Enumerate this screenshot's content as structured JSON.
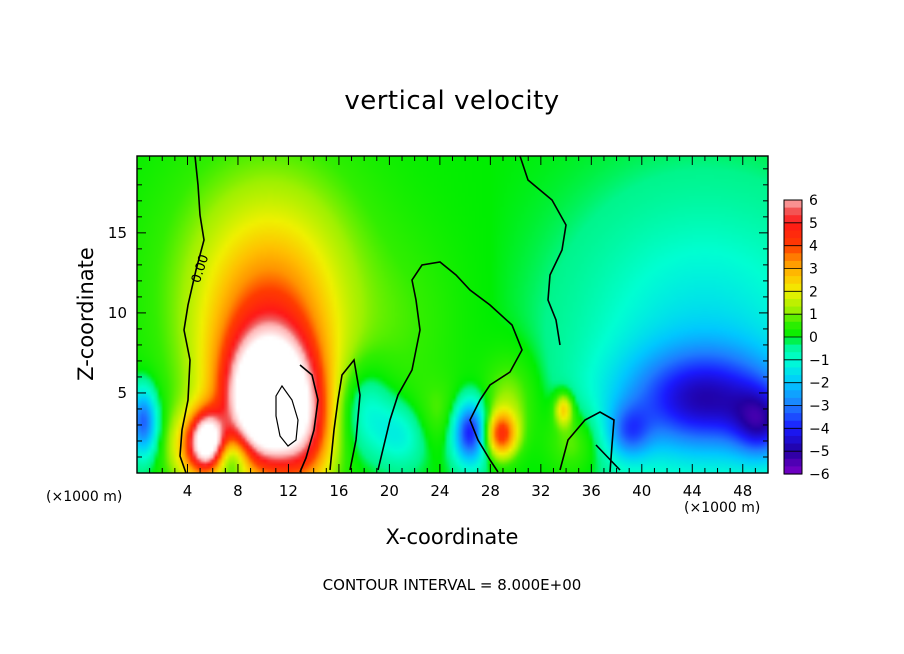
{
  "chart_data": {
    "type": "heatmap",
    "title": "vertical velocity",
    "xlabel": "X-coordinate",
    "ylabel": "Z-coordinate",
    "x_unit": "(×1000 m)",
    "y_unit": "(×1000 m)",
    "xlim": [
      0,
      50
    ],
    "ylim": [
      0,
      19.8
    ],
    "x_ticks": [
      4,
      8,
      12,
      16,
      20,
      24,
      28,
      32,
      36,
      40,
      44,
      48
    ],
    "y_ticks": [
      5,
      10,
      15
    ],
    "colorbar": {
      "range": [
        -6,
        6
      ],
      "tick_labels": [
        "6",
        "5",
        "4",
        "3",
        "2",
        "1",
        "0",
        "−1",
        "−2",
        "−3",
        "−4",
        "−5",
        "−6"
      ],
      "tick_values": [
        6,
        5,
        4,
        3,
        2,
        1,
        0,
        -1,
        -2,
        -3,
        -4,
        -5,
        -6
      ],
      "placement": "right"
    },
    "contour_label": "0.00",
    "footnote": "CONTOUR INTERVAL = 8.000E+00",
    "features": [
      {
        "x": 10.5,
        "z": 4.5,
        "sx": 2.2,
        "sz": 2.6,
        "w": 9
      },
      {
        "x": 10.5,
        "z": 7.0,
        "sx": 3.6,
        "sz": 5.0,
        "w": 3.2
      },
      {
        "x": 10.5,
        "z": 12.0,
        "sx": 6.0,
        "sz": 6.0,
        "w": 1.6
      },
      {
        "x": 5.6,
        "z": 2.0,
        "sx": 0.9,
        "sz": 1.2,
        "w": 6
      },
      {
        "x": 4.5,
        "z": 1.5,
        "sx": 1.4,
        "sz": 1.6,
        "w": 2.5
      },
      {
        "x": 13.5,
        "z": 2.0,
        "sx": 1.5,
        "sz": 2.5,
        "w": 2.0
      },
      {
        "x": 28.8,
        "z": 2.4,
        "sx": 0.9,
        "sz": 1.0,
        "w": 4
      },
      {
        "x": 29.5,
        "z": 4.5,
        "sx": 1.5,
        "sz": 2.0,
        "w": 1.2
      },
      {
        "x": 33.8,
        "z": 4.0,
        "sx": 0.5,
        "sz": 0.7,
        "w": 2.5
      },
      {
        "x": 34.5,
        "z": 2.0,
        "sx": 1.5,
        "sz": 1.5,
        "w": 1.2
      },
      {
        "x": 24.0,
        "z": 3.5,
        "sx": 2.0,
        "sz": 1.5,
        "w": 0.8
      },
      {
        "x": 0.5,
        "z": 3.2,
        "sx": 0.8,
        "sz": 1.5,
        "w": -3.5
      },
      {
        "x": 26.4,
        "z": 2.6,
        "sx": 1.0,
        "sz": 1.4,
        "w": -4.5
      },
      {
        "x": 45.0,
        "z": 4.5,
        "sx": 4.5,
        "sz": 2.2,
        "w": -3.5
      },
      {
        "x": 45.0,
        "z": 8.0,
        "sx": 7.0,
        "sz": 6.0,
        "w": -1.6
      },
      {
        "x": 49.5,
        "z": 3.0,
        "sx": 1.5,
        "sz": 1.5,
        "w": -2.5
      },
      {
        "x": 39.0,
        "z": 2.5,
        "sx": 1.2,
        "sz": 1.2,
        "w": -2.0
      },
      {
        "x": 18.0,
        "z": 4.0,
        "sx": 1.5,
        "sz": 2.0,
        "w": -1.5
      },
      {
        "x": 21.0,
        "z": 2.5,
        "sx": 1.5,
        "sz": 1.5,
        "w": -1.5
      },
      {
        "x": 7.5,
        "z": 1.0,
        "sx": 1.0,
        "sz": 1.0,
        "w": -2.0
      },
      {
        "x": 22.0,
        "z": 9.0,
        "sx": 3.0,
        "sz": 4.0,
        "w": 0.4
      }
    ]
  }
}
